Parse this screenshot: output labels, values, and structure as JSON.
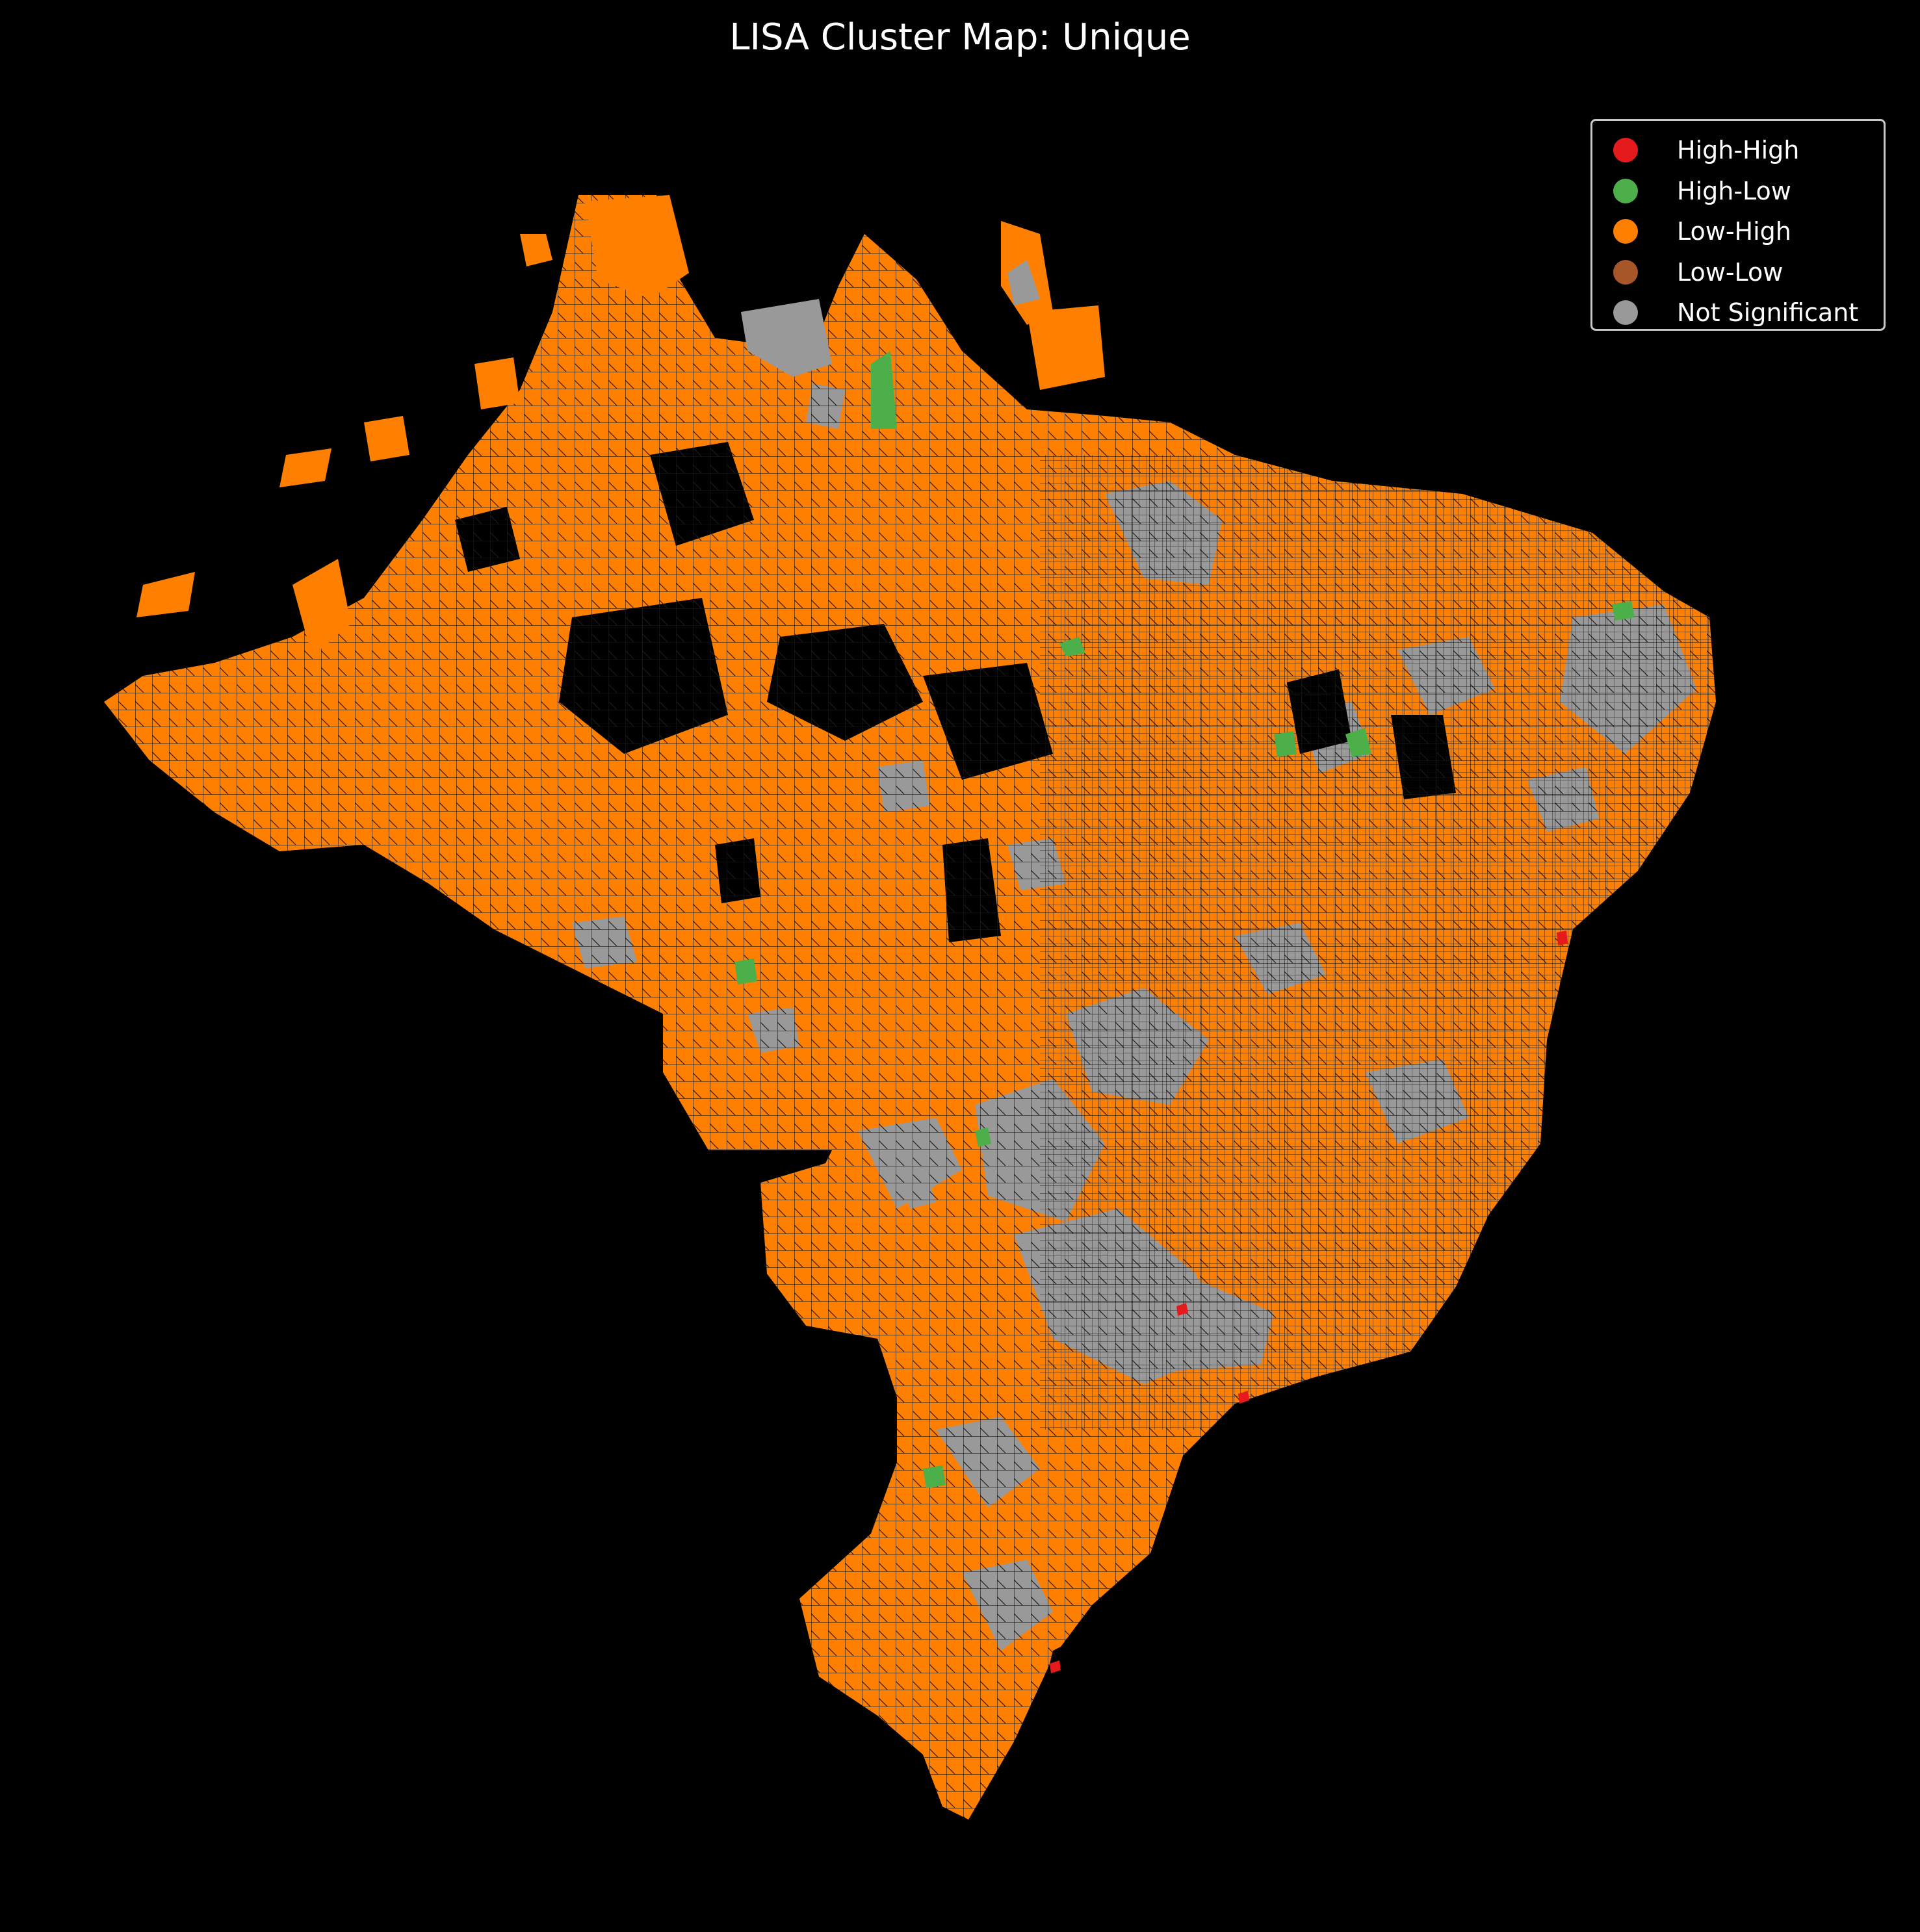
{
  "title": "LISA Cluster Map: Unique",
  "legend": {
    "items": [
      {
        "label": "High-High",
        "color": "#e41a1c"
      },
      {
        "label": "High-Low",
        "color": "#4daf4a"
      },
      {
        "label": "Low-High",
        "color": "#ff7f00"
      },
      {
        "label": "Low-Low",
        "color": "#a65628"
      },
      {
        "label": "Not Significant",
        "color": "#999999"
      }
    ]
  },
  "colors": {
    "background": "#000000",
    "text": "#ffffff",
    "legend_border": "#c8c8c8",
    "boundary": "#1a1a1a"
  }
}
